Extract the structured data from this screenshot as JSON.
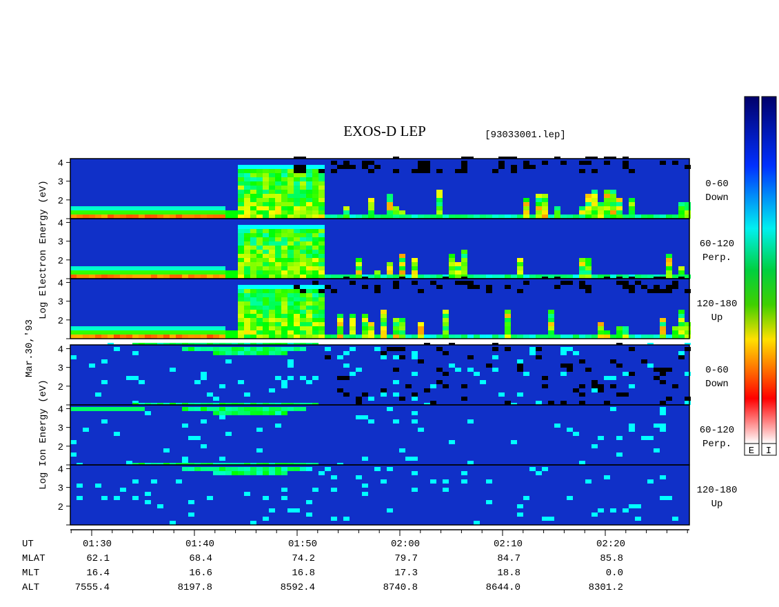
{
  "title": "EXOS-D LEP",
  "file": "[93033001.lep]",
  "date": "Mar.30,'93",
  "electron": {
    "ylabel": "Log Electron Energy (eV)",
    "ylim": [
      1,
      4.2
    ],
    "panels": [
      {
        "label": [
          "0-60",
          "Down"
        ],
        "yticks": [
          2,
          3,
          4
        ]
      },
      {
        "label": [
          "60-120",
          "Perp."
        ],
        "yticks": [
          2,
          3,
          4
        ]
      },
      {
        "label": [
          "120-180",
          "Up"
        ],
        "yticks": [
          2,
          3,
          4
        ]
      }
    ]
  },
  "ion": {
    "ylabel": "Log Ion Energy (eV)",
    "ylim": [
      1,
      4.2
    ],
    "panels": [
      {
        "label": [
          "0-60",
          "Down"
        ],
        "yticks": [
          2,
          3,
          4
        ]
      },
      {
        "label": [
          "60-120",
          "Perp."
        ],
        "yticks": [
          2,
          3,
          4
        ]
      },
      {
        "label": [
          "120-180",
          "Up"
        ],
        "yticks": [
          2,
          3,
          4
        ]
      }
    ]
  },
  "ut_table": {
    "rows": [
      {
        "label": "UT",
        "values": [
          "01:30",
          "01:40",
          "01:50",
          "02:00",
          "02:10",
          "02:20"
        ]
      },
      {
        "label": "MLAT",
        "values": [
          "62.1",
          "68.4",
          "74.2",
          "79.7",
          "84.7",
          "85.8"
        ]
      },
      {
        "label": "MLT",
        "values": [
          "16.4",
          "16.6",
          "16.8",
          "17.3",
          "18.8",
          "0.0"
        ]
      },
      {
        "label": "ALT",
        "values": [
          "7555.4",
          "8197.8",
          "8592.4",
          "8740.8",
          "8644.0",
          "8301.2"
        ]
      }
    ]
  },
  "colorbars": [
    "E",
    "I"
  ]
}
